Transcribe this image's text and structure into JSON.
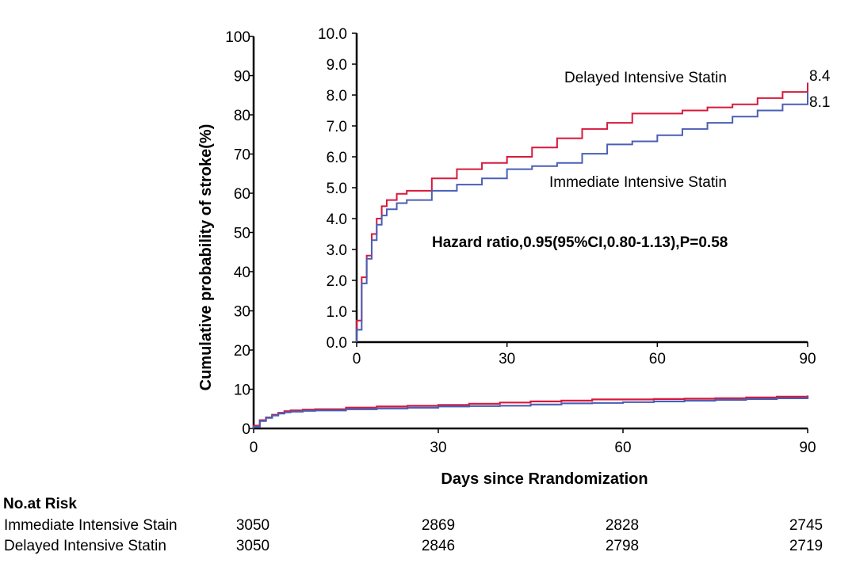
{
  "main_chart": {
    "ylabel": "Cumulative probability of stroke(%)",
    "xlabel": "Days since Rrandomization",
    "yticks": [
      "0",
      "10",
      "20",
      "30",
      "40",
      "50",
      "60",
      "70",
      "80",
      "90",
      "100"
    ],
    "xticks": [
      "0",
      "30",
      "60",
      "90"
    ]
  },
  "inset_chart": {
    "yticks": [
      "0.0",
      "1.0",
      "2.0",
      "3.0",
      "4.0",
      "5.0",
      "6.0",
      "7.0",
      "8.0",
      "9.0",
      "10.0"
    ],
    "xticks": [
      "0",
      "30",
      "60",
      "90"
    ],
    "delayed_label": "Delayed Intensive Statin",
    "immediate_label": "Immediate Intensive Statin",
    "delayed_end": "8.4",
    "immediate_end": "8.1",
    "hazard_text": "Hazard ratio,0.95(95%CI,0.80-1.13),P=0.58"
  },
  "risk_table": {
    "title": "No.at Risk",
    "rows": [
      {
        "name": "Immediate Intensive Stain",
        "values": [
          "3050",
          "2869",
          "2828",
          "2745"
        ]
      },
      {
        "name": "Delayed Intensive Statin",
        "values": [
          "3050",
          "2846",
          "2798",
          "2719"
        ]
      }
    ]
  },
  "colors": {
    "delayed": "#d7193c",
    "immediate": "#4a5fb5",
    "axis": "#000000"
  },
  "chart_data": [
    {
      "type": "line",
      "xlabel": "Days since Rrandomization",
      "ylabel": "Cumulative probability of stroke(%)",
      "xlim": [
        0,
        90
      ],
      "ylim": [
        0,
        100
      ],
      "x": [
        0,
        1,
        2,
        3,
        4,
        5,
        6,
        8,
        10,
        15,
        20,
        25,
        30,
        35,
        40,
        45,
        50,
        55,
        60,
        65,
        70,
        75,
        80,
        85,
        90
      ],
      "series": [
        {
          "name": "Delayed Intensive Statin",
          "values": [
            0.7,
            2.1,
            2.8,
            3.5,
            4.0,
            4.4,
            4.6,
            4.8,
            4.9,
            5.3,
            5.6,
            5.8,
            6.0,
            6.3,
            6.6,
            6.9,
            7.1,
            7.4,
            7.4,
            7.5,
            7.6,
            7.7,
            7.9,
            8.1,
            8.4
          ]
        },
        {
          "name": "Immediate Intensive Statin",
          "values": [
            0.4,
            1.9,
            2.7,
            3.3,
            3.8,
            4.1,
            4.3,
            4.5,
            4.6,
            4.9,
            5.1,
            5.3,
            5.6,
            5.7,
            5.8,
            6.1,
            6.4,
            6.5,
            6.7,
            6.9,
            7.1,
            7.3,
            7.5,
            7.7,
            8.1
          ]
        }
      ]
    },
    {
      "type": "line",
      "xlim": [
        0,
        90
      ],
      "ylim": [
        0,
        10
      ],
      "x": [
        0,
        1,
        2,
        3,
        4,
        5,
        6,
        8,
        10,
        15,
        20,
        25,
        30,
        35,
        40,
        45,
        50,
        55,
        60,
        65,
        70,
        75,
        80,
        85,
        90
      ],
      "series": [
        {
          "name": "Delayed Intensive Statin",
          "values": [
            0.7,
            2.1,
            2.8,
            3.5,
            4.0,
            4.4,
            4.6,
            4.8,
            4.9,
            5.3,
            5.6,
            5.8,
            6.0,
            6.3,
            6.6,
            6.9,
            7.1,
            7.4,
            7.4,
            7.5,
            7.6,
            7.7,
            7.9,
            8.1,
            8.4
          ]
        },
        {
          "name": "Immediate Intensive Statin",
          "values": [
            0.4,
            1.9,
            2.7,
            3.3,
            3.8,
            4.1,
            4.3,
            4.5,
            4.6,
            4.9,
            5.1,
            5.3,
            5.6,
            5.7,
            5.8,
            6.1,
            6.4,
            6.5,
            6.7,
            6.9,
            7.1,
            7.3,
            7.5,
            7.7,
            8.1
          ]
        }
      ]
    }
  ]
}
